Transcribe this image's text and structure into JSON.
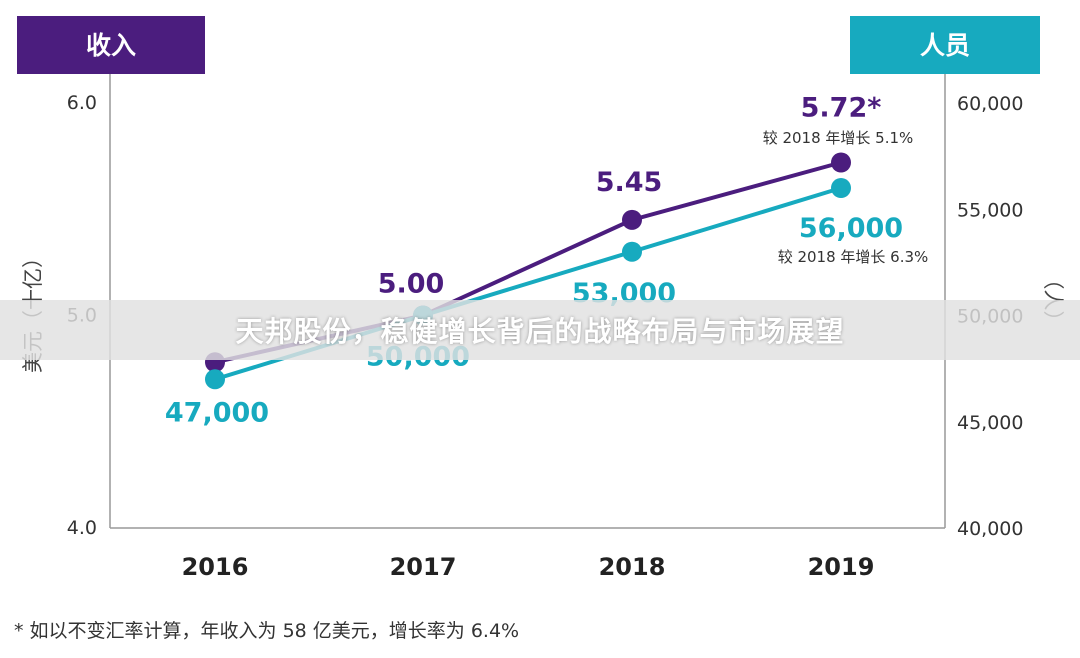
{
  "chart_data": {
    "type": "line",
    "categories": [
      "2016",
      "2017",
      "2018",
      "2019"
    ],
    "left_axis": {
      "header": "收入",
      "label": "美元（十亿）",
      "ylim": [
        4.0,
        6.0
      ],
      "ticks": [
        "6.0",
        "5.0",
        "4.0"
      ]
    },
    "right_axis": {
      "header": "人员",
      "label": "（人）",
      "ylim": [
        40000,
        60000
      ],
      "ticks": [
        "60,000",
        "55,000",
        "50,000",
        "45,000",
        "40,000"
      ]
    },
    "series": [
      {
        "axis": "left",
        "values": [
          4.78,
          5.0,
          5.45,
          5.72
        ],
        "labels": [
          "",
          "5.00",
          "5.45",
          "5.72*"
        ],
        "color": "#4b1d7e"
      },
      {
        "axis": "right",
        "values": [
          47000,
          50000,
          53000,
          56000
        ],
        "labels": [
          "47,000",
          "50,000",
          "53,000",
          "56,000"
        ],
        "color": "#17aabf"
      }
    ],
    "annotations": {
      "revenue_growth": "较 2018 年增长 5.1%",
      "staff_growth": "较 2018 年增长 6.3%"
    },
    "footnote": "* 如以不变汇率计算，年收入为 58 亿美元，增长率为 6.4%",
    "grid": false,
    "legend": "none"
  },
  "overlay_title": "天邦股份，稳健增长背后的战略布局与市场展望",
  "colors": {
    "revenue": "#4b1d7e",
    "staff": "#17aabf",
    "axis": "#999999"
  }
}
